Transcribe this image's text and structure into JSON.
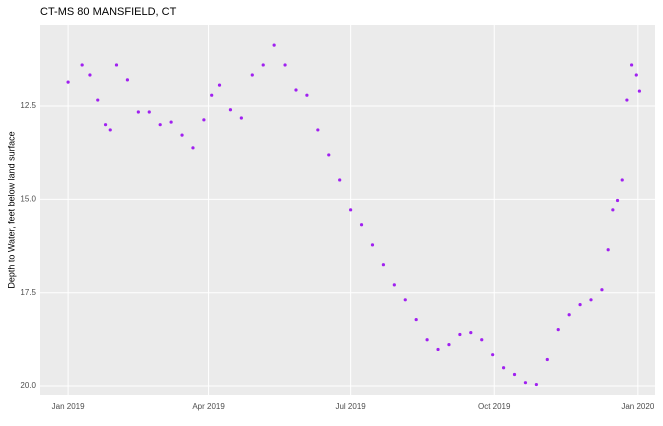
{
  "chart_data": {
    "type": "scatter",
    "title": "CT-MS  80 MANSFIELD, CT",
    "ylabel": "Depth to Water, feet below land surface",
    "color": "#a020f0",
    "y_reversed": true,
    "grid": true,
    "x": [
      "2019-01-01",
      "2019-01-10",
      "2019-01-15",
      "2019-01-20",
      "2019-01-25",
      "2019-01-28",
      "2019-02-01",
      "2019-02-08",
      "2019-02-15",
      "2019-02-22",
      "2019-03-01",
      "2019-03-08",
      "2019-03-15",
      "2019-03-22",
      "2019-03-29",
      "2019-04-03",
      "2019-04-08",
      "2019-04-15",
      "2019-04-22",
      "2019-04-29",
      "2019-05-06",
      "2019-05-13",
      "2019-05-20",
      "2019-05-27",
      "2019-06-03",
      "2019-06-10",
      "2019-06-17",
      "2019-06-24",
      "2019-07-01",
      "2019-07-08",
      "2019-07-15",
      "2019-07-22",
      "2019-07-29",
      "2019-08-05",
      "2019-08-12",
      "2019-08-19",
      "2019-08-26",
      "2019-09-02",
      "2019-09-09",
      "2019-09-16",
      "2019-09-23",
      "2019-09-30",
      "2019-10-07",
      "2019-10-14",
      "2019-10-21",
      "2019-10-28",
      "2019-11-04",
      "2019-11-11",
      "2019-11-18",
      "2019-11-25",
      "2019-12-02",
      "2019-12-09",
      "2019-12-13",
      "2019-12-16",
      "2019-12-19",
      "2019-12-22",
      "2019-12-25",
      "2019-12-28",
      "2019-12-31",
      "2020-01-02"
    ],
    "values": [
      11.86,
      11.4,
      11.67,
      12.34,
      13.0,
      13.14,
      11.4,
      11.8,
      12.66,
      12.66,
      13.0,
      12.93,
      13.28,
      13.62,
      12.87,
      12.21,
      11.94,
      12.6,
      12.82,
      11.67,
      11.4,
      10.87,
      11.4,
      12.07,
      12.21,
      13.14,
      13.81,
      14.48,
      15.28,
      15.68,
      16.22,
      16.75,
      17.29,
      17.69,
      18.22,
      18.76,
      19.02,
      18.89,
      18.62,
      18.57,
      18.76,
      19.16,
      19.51,
      19.69,
      19.91,
      19.96,
      19.29,
      18.49,
      18.09,
      17.82,
      17.69,
      17.42,
      16.35,
      15.28,
      15.03,
      14.48,
      12.34,
      11.4,
      11.67,
      12.1
    ],
    "xlim": [
      "2018-12-14",
      "2020-01-12"
    ],
    "xticks": [
      {
        "value": "2019-01-01",
        "label": "Jan 2019"
      },
      {
        "value": "2019-04-01",
        "label": "Apr 2019"
      },
      {
        "value": "2019-07-01",
        "label": "Jul 2019"
      },
      {
        "value": "2019-10-01",
        "label": "Oct 2019"
      },
      {
        "value": "2020-01-01",
        "label": "Jan 2020"
      }
    ],
    "ylim": [
      10.33,
      20.24
    ],
    "yticks": [
      12.5,
      {
        "value": 15,
        "label": "15.0"
      },
      {
        "value": 17.5,
        "label": "17.5"
      },
      {
        "value": 20,
        "label": "20.0"
      }
    ]
  }
}
